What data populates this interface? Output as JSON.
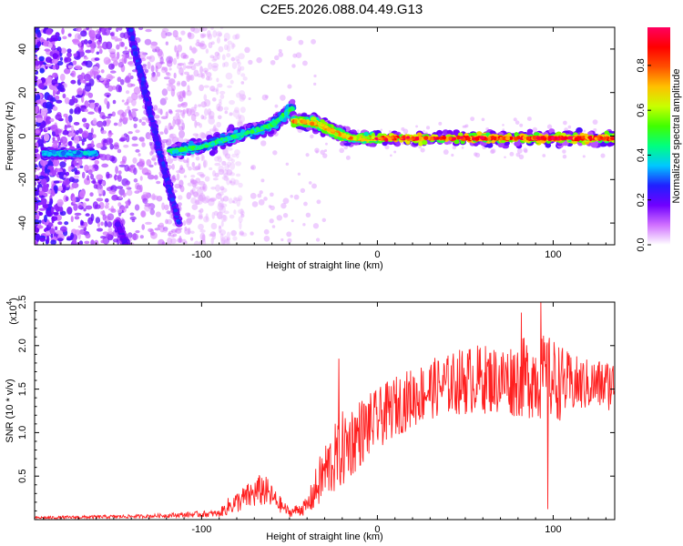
{
  "title": "C2E5.2026.088.04.49.G13",
  "chart_data": [
    {
      "type": "heatmap",
      "title": "C2E5.2026.088.04.49.G13",
      "xlabel": "Height of straight line (km)",
      "ylabel": "Frequency (Hz)",
      "xlim": [
        -195,
        135
      ],
      "ylim": [
        -50,
        50
      ],
      "x_ticks": [
        -100,
        0,
        100
      ],
      "y_ticks": [
        -40,
        -20,
        0,
        20,
        40
      ],
      "colorbar": {
        "label": "Normalized spectral amplitude",
        "range": [
          0,
          0.97
        ],
        "ticks": [
          "0.0",
          "0.2",
          "0.4",
          "0.6",
          "0.8"
        ],
        "tick_values": [
          0,
          0.2,
          0.4,
          0.6,
          0.8
        ],
        "colors": [
          "#ffffff",
          "#d070ff",
          "#7000ff",
          "#2020ff",
          "#00c8ff",
          "#00ff80",
          "#40ff00",
          "#c8ff00",
          "#ffc000",
          "#ff5000",
          "#ff0000",
          "#ff0060"
        ]
      },
      "features": [
        {
          "name": "steep-track",
          "points": [
            [
              -141,
              50
            ],
            [
              -132,
              20
            ],
            [
              -123,
              -10
            ],
            [
              -113,
              -40
            ]
          ],
          "amplitude": 0.25
        },
        {
          "name": "steep-track-lower",
          "points": [
            [
              -148,
              -40
            ],
            [
              -143,
              -50
            ]
          ],
          "amplitude": 0.2
        },
        {
          "name": "left-horizontal-blob",
          "points": [
            [
              -190,
              -8
            ],
            [
              -160,
              -8
            ]
          ],
          "amplitude": 0.35
        },
        {
          "name": "rising-band",
          "points": [
            [
              -118,
              -7
            ],
            [
              -100,
              -5
            ],
            [
              -80,
              0
            ],
            [
              -60,
              5
            ],
            [
              -48,
              13
            ]
          ],
          "amplitude": 0.45
        },
        {
          "name": "peak-plateau",
          "points": [
            [
              -48,
              7
            ],
            [
              -35,
              6
            ],
            [
              -25,
              2
            ],
            [
              -15,
              -1
            ],
            [
              0,
              -1
            ]
          ],
          "amplitude": 0.7
        },
        {
          "name": "horizontal-band",
          "points": [
            [
              0,
              -1
            ],
            [
              60,
              -1
            ],
            [
              100,
              -1
            ],
            [
              135,
              -1
            ]
          ],
          "amplitude": 0.85
        }
      ]
    },
    {
      "type": "line",
      "xlabel": "Height of straight line (km)",
      "ylabel": "SNR (10 * v/v)",
      "exponent_label": "(x10",
      "exponent": "4",
      "xlim": [
        -195,
        135
      ],
      "ylim": [
        0,
        2.5
      ],
      "x_ticks": [
        -100,
        0,
        100
      ],
      "y_ticks": [
        0.5,
        1.0,
        1.5,
        2.0,
        2.5
      ],
      "y_tick_labels": [
        "0.5",
        "1.0",
        "1.5",
        "2.0",
        "2.5"
      ],
      "series": [
        {
          "name": "SNR",
          "color": "#ff2020",
          "envelope_x": [
            -195,
            -160,
            -130,
            -90,
            -85,
            -75,
            -65,
            -58,
            -50,
            -40,
            -35,
            -30,
            -20,
            -10,
            0,
            10,
            20,
            30,
            40,
            50,
            60,
            70,
            80,
            90,
            100,
            110,
            120,
            135
          ],
          "envelope_mean": [
            0.02,
            0.03,
            0.04,
            0.07,
            0.15,
            0.25,
            0.35,
            0.22,
            0.08,
            0.15,
            0.35,
            0.55,
            0.8,
            1.0,
            1.15,
            1.3,
            1.4,
            1.5,
            1.55,
            1.6,
            1.62,
            1.6,
            1.62,
            1.65,
            1.6,
            1.55,
            1.55,
            1.55
          ],
          "envelope_spread": [
            0.015,
            0.02,
            0.02,
            0.04,
            0.1,
            0.15,
            0.2,
            0.12,
            0.05,
            0.1,
            0.25,
            0.35,
            0.45,
            0.4,
            0.35,
            0.35,
            0.35,
            0.35,
            0.35,
            0.4,
            0.4,
            0.4,
            0.45,
            0.5,
            0.5,
            0.35,
            0.3,
            0.3
          ],
          "notable_points": [
            [
              -22,
              1.85
            ],
            [
              93,
              2.5
            ],
            [
              97,
              0.12
            ],
            [
              82,
              2.38
            ]
          ]
        }
      ]
    }
  ]
}
